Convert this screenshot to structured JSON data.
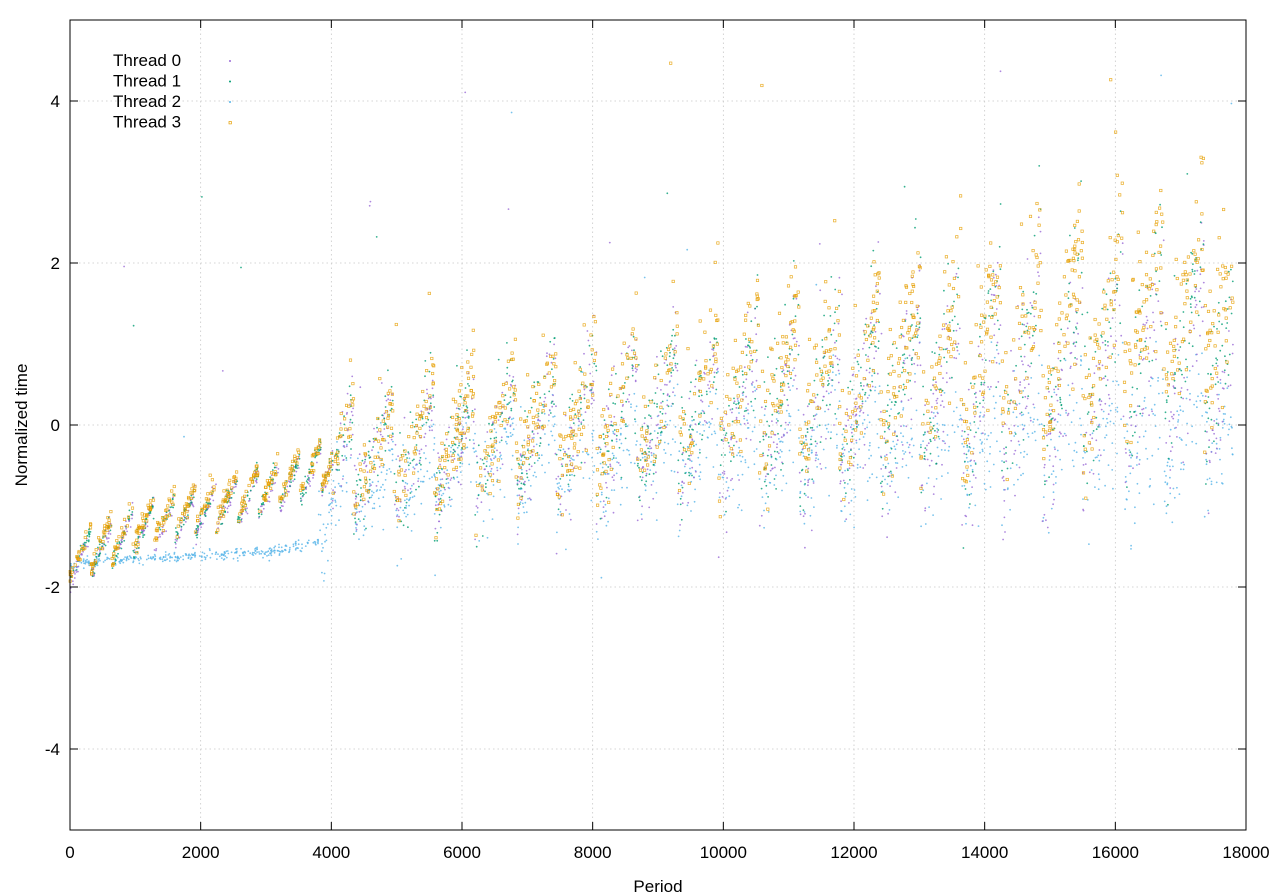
{
  "chart_data": {
    "type": "scatter",
    "title": "",
    "xlabel": "Period",
    "ylabel": "Normalized time",
    "xlim": [
      0,
      18000
    ],
    "ylim": [
      -5,
      5
    ],
    "x_ticks": [
      0,
      2000,
      4000,
      6000,
      8000,
      10000,
      12000,
      14000,
      16000,
      18000
    ],
    "y_ticks": [
      -4,
      -2,
      0,
      2,
      4
    ],
    "x_tick_labels": [
      "0",
      "2000",
      "4000",
      "6000",
      "8000",
      "10000",
      "12000",
      "14000",
      "16000",
      "18000"
    ],
    "y_tick_labels": [
      "-4",
      "-2",
      "0",
      "2",
      "4"
    ],
    "grid": true,
    "legend_position": "top-left",
    "x_max_observed": 17800,
    "series": [
      {
        "name": "Thread 0",
        "color": "#9a6ad6",
        "marker": "dot",
        "trend": {
          "x": [
            0,
            1000,
            2000,
            3000,
            3800,
            4200,
            5000,
            6000,
            7000,
            8000,
            9000,
            10000,
            11000,
            12000,
            13000,
            14000,
            15000,
            16000,
            17000,
            17800
          ],
          "y": [
            -1.7,
            -1.35,
            -1.1,
            -0.85,
            -0.6,
            -0.5,
            -0.35,
            -0.3,
            -0.15,
            -0.05,
            0.0,
            0.1,
            0.1,
            0.2,
            0.35,
            0.4,
            0.5,
            0.55,
            0.6,
            0.65
          ]
        }
      },
      {
        "name": "Thread 1",
        "color": "#009e73",
        "marker": "dot",
        "trend": {
          "x": [
            0,
            1000,
            2000,
            3000,
            3800,
            4200,
            5000,
            6000,
            7000,
            8000,
            9000,
            10000,
            11000,
            12000,
            13000,
            14000,
            15000,
            16000,
            17000,
            17800
          ],
          "y": [
            -1.65,
            -1.3,
            -1.05,
            -0.8,
            -0.55,
            -0.45,
            -0.3,
            -0.2,
            -0.05,
            0.05,
            0.15,
            0.25,
            0.3,
            0.4,
            0.6,
            0.7,
            0.85,
            0.95,
            1.1,
            1.2
          ]
        }
      },
      {
        "name": "Thread 2",
        "color": "#56b4e9",
        "marker": "dot",
        "trend": {
          "x": [
            0,
            1000,
            2000,
            3000,
            3800,
            4000,
            5000,
            6000,
            7000,
            8000,
            9000,
            10000,
            11000,
            12000,
            13000,
            14000,
            15000,
            16000,
            17000,
            17800
          ],
          "y": [
            -1.72,
            -1.65,
            -1.62,
            -1.58,
            -1.45,
            -0.95,
            -0.7,
            -0.55,
            -0.45,
            -0.4,
            -0.35,
            -0.3,
            -0.25,
            -0.25,
            -0.2,
            -0.2,
            -0.15,
            -0.15,
            -0.1,
            -0.1
          ]
        }
      },
      {
        "name": "Thread 3",
        "color": "#e69f00",
        "marker": "open-square",
        "trend": {
          "x": [
            0,
            1000,
            2000,
            3000,
            3800,
            4200,
            5000,
            6000,
            7000,
            8000,
            9000,
            10000,
            11000,
            12000,
            13000,
            14000,
            15000,
            16000,
            17000,
            17800
          ],
          "y": [
            -1.62,
            -1.25,
            -1.0,
            -0.75,
            -0.5,
            -0.4,
            -0.25,
            -0.1,
            0.05,
            0.15,
            0.3,
            0.4,
            0.5,
            0.6,
            0.8,
            0.95,
            1.1,
            1.3,
            1.45,
            1.55
          ]
        }
      }
    ]
  }
}
